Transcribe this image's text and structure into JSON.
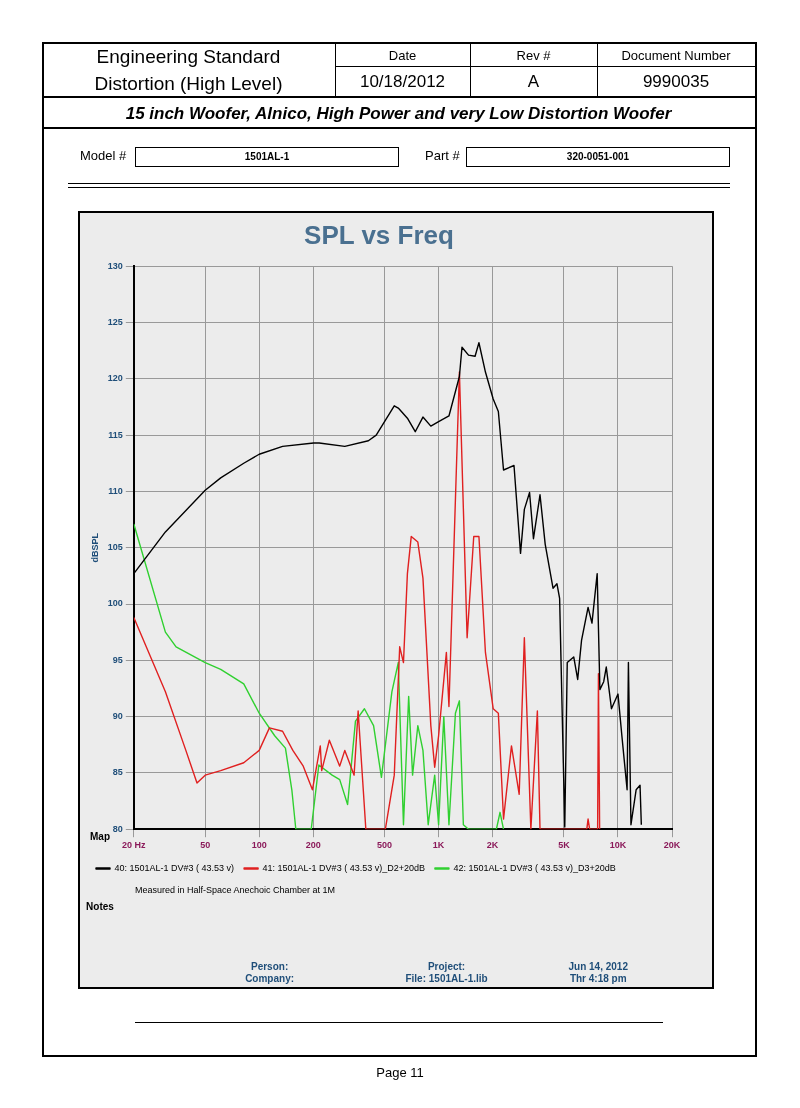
{
  "chart_data": {
    "type": "line",
    "title": "SPL vs Freq",
    "subtitle": "15 inch Woofer, Alnico, High Power and very Low Distortion Woofer",
    "ylabel": "dBSPL",
    "annotations": [
      "Engineering Standard",
      "Distortion (High Level)",
      "Date",
      "10/18/2012",
      "Rev #",
      "A",
      "Document Number",
      "9990035",
      "Model #",
      "1501AL-1",
      "Part #",
      "320-0051-001",
      "Measured in Half-Space Anechoic Chamber at 1M",
      "Person:",
      "Company:",
      "Project:",
      "File: 1501AL-1.lib",
      "Jun 14, 2012",
      "Thr 4:18 pm",
      "Page 11",
      "Map",
      "Notes"
    ],
    "xlim": [
      20,
      20000
    ],
    "xticks": [
      {
        "value": 20,
        "label": "20 Hz"
      },
      50,
      100,
      200,
      500,
      {
        "value": 1000,
        "label": "1K"
      },
      {
        "value": 2000,
        "label": "2K"
      },
      {
        "value": 5000,
        "label": "5K"
      },
      {
        "value": 10000,
        "label": "10K"
      },
      {
        "value": 20000,
        "label": "20K"
      }
    ],
    "ylim": [
      80,
      130
    ],
    "yticks": [
      80,
      85,
      90,
      95,
      100,
      105,
      110,
      115,
      120,
      125,
      130
    ],
    "log": "x",
    "grid": true,
    "legend": "bottom",
    "marker": "none",
    "line_style": "solid",
    "series": [
      {
        "name": "40: 1501AL-1 DV#3 ( 43.53 v)",
        "color": "#000000",
        "x": [
          20,
          30,
          50,
          61,
          82,
          100,
          135,
          201,
          216,
          300,
          406,
          449,
          566,
          596,
          670,
          741,
          818,
          905,
          1000,
          1142,
          1306,
          1350,
          1468,
          1597,
          1678,
          1824,
          2015,
          2153,
          2301,
          2632,
          2862,
          3006,
          3214,
          3379,
          3675,
          3929,
          4343,
          4567,
          4727,
          5050,
          5213,
          5665,
          5960,
          6266,
          6811,
          7160,
          7655,
          7926,
          8323,
          8603,
          9195,
          10000,
          10510,
          11240,
          11430,
          11810,
          12620,
          13270,
          13490
        ],
        "values": [
          102.7,
          106.4,
          110.1,
          111.2,
          112.5,
          113.3,
          114,
          114.3,
          114.3,
          114,
          114.5,
          115,
          117.6,
          117.4,
          116.5,
          115.3,
          116.6,
          115.8,
          116.2,
          116.7,
          120.2,
          122.8,
          122.1,
          122,
          123.2,
          120.6,
          118.2,
          117.1,
          111.9,
          112.3,
          104.5,
          108.4,
          109.9,
          105.8,
          109.7,
          105.3,
          101.4,
          101.8,
          100.5,
          80.2,
          94.8,
          95.3,
          93.3,
          96.8,
          99.7,
          98.3,
          102.7,
          92.4,
          93.1,
          94.4,
          90.7,
          92,
          88.3,
          83.5,
          94.8,
          80.4,
          83.5,
          83.9,
          80.4
        ]
      },
      {
        "name": "41: 1501AL-1 DV#3 ( 43.53 v)_D2+20dB",
        "color": "#e02020",
        "x": [
          20,
          30,
          39,
          45,
          50,
          61,
          82,
          100,
          114,
          135,
          154,
          176,
          198,
          219,
          223,
          246,
          281,
          300,
          338,
          356,
          393,
          505,
          566,
          607,
          637,
          670,
          704,
          766,
          818,
          905,
          951,
          1000,
          1105,
          1142,
          1306,
          1442,
          1570,
          1678,
          1824,
          2015,
          2153,
          2301,
          2548,
          2813,
          3006,
          3268,
          3553,
          3675,
          6700,
          6811,
          6950,
          7700,
          7780,
          7900
        ],
        "values": [
          98.8,
          92.2,
          87,
          84.1,
          84.8,
          85.2,
          85.9,
          87,
          89,
          88.7,
          87,
          85.6,
          83.5,
          87.4,
          85.2,
          87.9,
          85.6,
          87,
          84.8,
          90.5,
          80,
          80,
          84.8,
          96.2,
          94.8,
          102.7,
          106,
          105.5,
          102.3,
          89.2,
          85.5,
          88.3,
          95.7,
          90.9,
          120.6,
          97,
          106,
          106,
          95.7,
          90.7,
          90.3,
          80.9,
          87.4,
          83.1,
          97,
          80,
          90.5,
          80,
          80,
          80.9,
          80,
          80,
          93.8,
          80
        ]
      },
      {
        "name": "42: 1501AL-1 DV#3 ( 43.53 v)_D3+20dB",
        "color": "#30d030",
        "x": [
          20,
          30,
          34.4,
          50,
          61,
          82,
          100,
          122,
          140,
          152,
          160,
          195,
          215,
          255,
          281,
          311,
          344,
          386,
          434,
          480,
          549,
          596,
          637,
          681,
          716,
          766,
          818,
          875,
          951,
          1000,
          1069,
          1142,
          1241,
          1306,
          1374,
          1468,
          2100,
          2200,
          2300
        ],
        "values": [
          107.1,
          97.5,
          96.2,
          94.8,
          94.2,
          92.9,
          90.3,
          88.3,
          87.2,
          83.5,
          80,
          80,
          85.7,
          84.8,
          84.4,
          82.2,
          89.6,
          90.7,
          89.2,
          84.6,
          92.2,
          94.8,
          80.4,
          91.8,
          84.8,
          89.2,
          87,
          80.4,
          84.8,
          80.4,
          90,
          80.4,
          90.3,
          91.4,
          80.4,
          80,
          80,
          81.5,
          80
        ]
      }
    ]
  }
}
